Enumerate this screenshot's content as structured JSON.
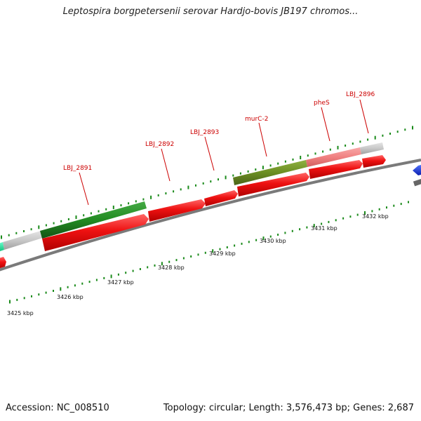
{
  "title": "Leptospira borgpetersenii serovar Hardjo-bovis JB197 chromos...",
  "footer": {
    "accession": "Accession: NC_008510",
    "summary": "Topology: circular; Length: 3,576,473 bp; Genes: 2,687"
  },
  "scale_labels": [
    "3425 kbp",
    "3426 kbp",
    "3427 kbp",
    "3428 kbp",
    "3429 kbp",
    "3430 kbp",
    "3431 kbp",
    "3432 kbp"
  ],
  "gene_labels": [
    "LBJ_2891",
    "LBJ_2892",
    "LBJ_2893",
    "murC-2",
    "pheS",
    "LBJ_2896"
  ],
  "colors": {
    "cds": "#ee1111",
    "gene_dark_green": "#228b22",
    "gene_olive": "#6b8e23",
    "gene_pink": "#f08080",
    "gene_grey": "#c8c8c8",
    "gene_teal": "#22dd99",
    "gene_blue": "#1133ee",
    "backbone": "#888888",
    "ticks": "#1a8a1a",
    "label": "#cc0000"
  }
}
